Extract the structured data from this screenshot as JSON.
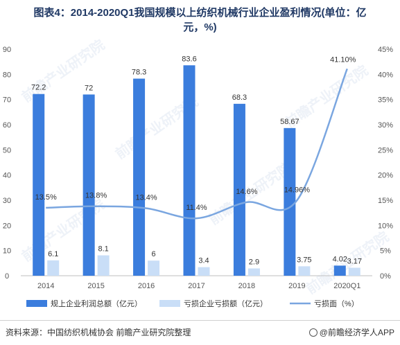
{
  "page": {
    "title_line1": "图表4：2014-2020Q1我国规模以上纺织机械行业企业盈利情况(单位：亿",
    "title_line2": "元，%)",
    "source": "资料来源：中国纺织机械协会 前瞻产业研究院整理",
    "brand": "@前瞻经济学人APP",
    "watermark": "前瞻产业研究院"
  },
  "chart_data": {
    "type": "bar",
    "categories": [
      "2014",
      "2015",
      "2016",
      "2017",
      "2018",
      "2019",
      "2020Q1"
    ],
    "series": [
      {
        "name": "规上企业利润总额（亿元）",
        "type": "bar",
        "axis": "left",
        "values": [
          72.2,
          72,
          78.3,
          83.6,
          68.3,
          58.67,
          4.02
        ],
        "labels": [
          "72.2",
          "72",
          "78.3",
          "83.6",
          "68.3",
          "58.67",
          "4.02"
        ],
        "color": "#3b7ddd"
      },
      {
        "name": "亏损企业亏损额（亿元）",
        "type": "bar",
        "axis": "left",
        "values": [
          6.1,
          8.1,
          6,
          3.4,
          2.9,
          3.75,
          3.17
        ],
        "labels": [
          "6.1",
          "8.1",
          "6",
          "3.4",
          "2.9",
          "3.75",
          "3.17"
        ],
        "color": "#c9def7"
      },
      {
        "name": "亏损面（%）",
        "type": "line",
        "axis": "right",
        "values": [
          13.5,
          13.8,
          13.4,
          11.4,
          14.6,
          14.96,
          41.1
        ],
        "labels": [
          "13.5%",
          "13.8%",
          "13.4%",
          "11.4%",
          "14.6%",
          "14.96%",
          "41.10%"
        ],
        "color": "#7aa6e0"
      }
    ],
    "y_left": {
      "min": 0,
      "max": 90,
      "ticks": [
        "0",
        "10",
        "20",
        "30",
        "40",
        "50",
        "60",
        "70",
        "80",
        "90"
      ]
    },
    "y_right": {
      "min": 0,
      "max": 45,
      "ticks": [
        "0%",
        "5%",
        "10%",
        "15%",
        "20%",
        "25%",
        "30%",
        "35%",
        "40%",
        "45%"
      ]
    },
    "legend_position": "bottom",
    "grid": false
  }
}
